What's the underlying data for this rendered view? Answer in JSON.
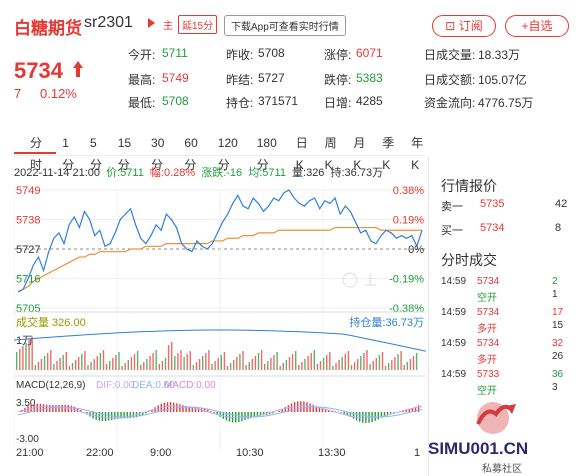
{
  "header": {
    "title": "白糖期货",
    "code": "sr2301",
    "tag_main": "主",
    "tag_delay": "延15分",
    "promo": "下载App可查看实时行情",
    "subscribe_label": "订阅",
    "add_label": "+自选"
  },
  "quote": {
    "price": "5734",
    "change": "7",
    "change_pct": "0.12%",
    "stats": [
      {
        "label": "今开:",
        "value": "5711",
        "color": "green"
      },
      {
        "label": "昨收:",
        "value": "5708",
        "color": "black"
      },
      {
        "label": "涨停:",
        "value": "6071",
        "color": "red"
      },
      {
        "label": "日成交量:",
        "value": "18.33万",
        "color": "black"
      },
      {
        "label": "最高:",
        "value": "5749",
        "color": "red"
      },
      {
        "label": "昨结:",
        "value": "5727",
        "color": "black"
      },
      {
        "label": "跌停:",
        "value": "5383",
        "color": "green"
      },
      {
        "label": "日成交额:",
        "value": "105.07亿",
        "color": "black"
      },
      {
        "label": "最低:",
        "value": "5708",
        "color": "green"
      },
      {
        "label": "持仓:",
        "value": "371571",
        "color": "black"
      },
      {
        "label": "日增:",
        "value": "4285",
        "color": "black"
      },
      {
        "label": "资金流向:",
        "value": "4776.75万",
        "color": "black"
      }
    ]
  },
  "tabs": [
    "分时",
    "1分",
    "5分",
    "15分",
    "30分",
    "60分",
    "120分",
    "180分",
    "日K",
    "周K",
    "月K",
    "季K",
    "年K"
  ],
  "info_line": {
    "time": "2022-11-14 21:00",
    "price": "价:5711",
    "amplitude": "幅:0.28%",
    "change": "涨跌:-16",
    "avg": "均:5711",
    "volume": "量:326",
    "position": "持:36.73万"
  },
  "chart_data": {
    "type": "line",
    "price_axis": [
      "5749",
      "5738",
      "5727",
      "5716",
      "5705"
    ],
    "pct_axis": [
      "0.38%",
      "0.19%",
      "0%",
      "-0.19%",
      "-0.38%"
    ],
    "volume_label": "成交量 326.00",
    "position_label": "持仓量:36.73万",
    "volume_axis": "1万",
    "macd_label": "MACD(12,26,9)",
    "macd_dif": "DIF:0.00",
    "macd_dea": "DEA:0.00",
    "macd_macd": "MACD:0.00",
    "macd_axis": [
      "3.50",
      "-3.00"
    ],
    "time_axis": [
      "21:00",
      "22:00",
      "9:00",
      "10:30",
      "13:30",
      "1"
    ],
    "watermark": "上",
    "ylim": [
      5705,
      5749
    ],
    "price_series": [
      5711,
      5712,
      5716,
      5721,
      5724,
      5719,
      5726,
      5731,
      5733,
      5729,
      5736,
      5739,
      5735,
      5741,
      5738,
      5732,
      5734,
      5728,
      5729,
      5733,
      5738,
      5740,
      5742,
      5736,
      5731,
      5729,
      5732,
      5736,
      5734,
      5740,
      5738,
      5735,
      5729,
      5727,
      5726,
      5730,
      5728,
      5727,
      5729,
      5733,
      5737,
      5740,
      5744,
      5747,
      5743,
      5742,
      5746,
      5744,
      5741,
      5743,
      5746,
      5745,
      5748,
      5749,
      5746,
      5744,
      5743,
      5745,
      5746,
      5742,
      5745,
      5744,
      5746,
      5740,
      5743,
      5741,
      5737,
      5733,
      5734,
      5730,
      5729,
      5732,
      5734,
      5733,
      5731,
      5732,
      5731,
      5732,
      5728,
      5734
    ],
    "avg_series": [
      5711,
      5712,
      5713,
      5715,
      5716,
      5717,
      5718,
      5719,
      5720,
      5721,
      5722,
      5723,
      5724,
      5724,
      5725,
      5725,
      5726,
      5726,
      5726,
      5726,
      5726,
      5726,
      5727,
      5727,
      5727,
      5728,
      5728,
      5728,
      5728,
      5729,
      5729,
      5729,
      5729,
      5729,
      5729,
      5729,
      5729,
      5729,
      5730,
      5730,
      5730,
      5731,
      5731,
      5731,
      5732,
      5732,
      5732,
      5733,
      5733,
      5733,
      5733,
      5734,
      5734,
      5734,
      5734,
      5734,
      5734,
      5734,
      5734,
      5734,
      5734,
      5734,
      5735,
      5735,
      5735,
      5735,
      5735,
      5735,
      5735,
      5735,
      5735,
      5734,
      5734,
      5734,
      5734,
      5734,
      5734,
      5734,
      5734,
      5734
    ]
  },
  "order_book": {
    "title": "行情报价",
    "rows": [
      {
        "label": "卖一",
        "price": "5735",
        "qty": "42",
        "price_color": "red"
      },
      {
        "label": "买一",
        "price": "5734",
        "qty": "8",
        "price_color": "red"
      }
    ]
  },
  "trades": {
    "title": "分时成交",
    "rows": [
      {
        "time": "14:59",
        "price": "5734",
        "qty": "2",
        "type": "空开",
        "sub": "1",
        "price_color": "red",
        "qty_color": "green",
        "type_color": "green"
      },
      {
        "time": "14:59",
        "price": "5734",
        "qty": "17",
        "type": "多开",
        "sub": "15",
        "price_color": "red",
        "qty_color": "red",
        "type_color": "red"
      },
      {
        "time": "14:59",
        "price": "5734",
        "qty": "32",
        "type": "多开",
        "sub": "26",
        "price_color": "red",
        "qty_color": "red",
        "type_color": "red"
      },
      {
        "time": "14:59",
        "price": "5733",
        "qty": "36",
        "type": "空开",
        "sub": "3",
        "price_color": "red",
        "qty_color": "green",
        "type_color": "green"
      }
    ]
  },
  "logo": {
    "text": "SIMU001.CN",
    "sub": "私募社区"
  },
  "colors": {
    "red": "#e53935",
    "green": "#1f9d3a",
    "blue": "#2f7fd8",
    "orange": "#e8923a"
  }
}
